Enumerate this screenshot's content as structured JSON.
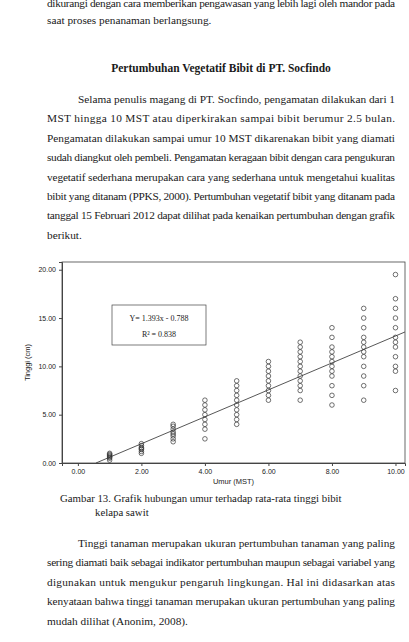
{
  "document": {
    "header_lines": [
      "dikurangi dengan cara memberikan pengawasan yang lebih lagi oleh mandor pada",
      "saat proses penanaman berlangsung."
    ],
    "heading": "Pertumbuhan Vegetatif Bibit di PT. Socfindo",
    "paragraph1": [
      "Selama penulis magang di PT. Socfindo, pengamatan dilakukan dari 1",
      "MST hingga 10 MST atau diperkirakan sampai bibit berumur 2.5 bulan.",
      "Pengamatan dilakukan sampai umur 10 MST dikarenakan bibit yang diamati",
      "sudah diangkut oleh pembeli. Pengamatan keragaan bibit dengan cara pengukuran",
      "vegetatif sederhana merupakan cara yang sederhana untuk mengetahui kualitas",
      "bibit yang ditanam (PPKS, 2000). Pertumbuhan vegetatif bibit yang ditanam pada",
      "tanggal 15 Februari 2012 dapat dilihat pada kenaikan pertumbuhan dengan grafik",
      "berikut."
    ],
    "caption": [
      "Gambar 13. Grafik hubungan umur terhadap rata-rata tinggi bibit",
      "kelapa sawit"
    ],
    "paragraph2": [
      "Tinggi tanaman merupakan ukuran pertumbuhan tanaman yang paling",
      "sering diamati baik sebagai indikator pertumbuhan maupun sebagai variabel yang",
      "digunakan untuk mengukur pengaruh lingkungan. Hal ini didasarkan atas",
      "kenyataan bahwa tinggi tanaman merupakan ukuran pertumbuhan yang paling",
      "mudah dilihat (Anonim, 2008)."
    ]
  },
  "chart_data": {
    "type": "scatter",
    "xlabel": "Umur (MST)",
    "ylabel": "Tinggi (cm)",
    "marker": "circle-open",
    "color": "#333333",
    "x": [
      1,
      1,
      1,
      1,
      1,
      1,
      1,
      2,
      2,
      2,
      2,
      2,
      2,
      2,
      3,
      3,
      3,
      3,
      3,
      3,
      3,
      3,
      4,
      4,
      4,
      4,
      4,
      4,
      4,
      4,
      5,
      5,
      5,
      5,
      5,
      5,
      5,
      5,
      5,
      5,
      6,
      6,
      6,
      6,
      6,
      6,
      6,
      6,
      6,
      7,
      7,
      7,
      7,
      7,
      7,
      7,
      7,
      7,
      7,
      7,
      7,
      8,
      8,
      8,
      8,
      8,
      8,
      8,
      8,
      8,
      8,
      8,
      8,
      9,
      9,
      9,
      9,
      9,
      9,
      9,
      9,
      9,
      9,
      9,
      9,
      10,
      10,
      10,
      10,
      10,
      10,
      10,
      10,
      10,
      10,
      10,
      10
    ],
    "values": [
      0.3,
      0.5,
      0.6,
      0.7,
      0.8,
      0.9,
      1.0,
      1.0,
      1.2,
      1.4,
      1.5,
      1.6,
      1.8,
      2.0,
      2.2,
      2.5,
      2.8,
      3.0,
      3.2,
      3.5,
      3.8,
      4.0,
      2.5,
      3.5,
      4.0,
      4.5,
      5.0,
      5.5,
      6.0,
      6.5,
      4.0,
      4.5,
      5.0,
      5.5,
      6.0,
      6.5,
      7.0,
      7.5,
      8.0,
      8.5,
      6.5,
      7.0,
      7.5,
      8.0,
      8.5,
      9.0,
      9.5,
      10.0,
      10.5,
      6.5,
      7.5,
      8.0,
      8.5,
      9.0,
      9.5,
      10.0,
      10.5,
      11.0,
      11.5,
      12.0,
      12.5,
      6.0,
      7.0,
      8.0,
      9.0,
      9.5,
      10.0,
      10.5,
      11.0,
      11.5,
      12.0,
      13.0,
      14.0,
      6.5,
      8.0,
      9.0,
      10.0,
      11.0,
      11.5,
      12.0,
      12.5,
      13.0,
      14.0,
      15.0,
      16.0,
      7.5,
      9.5,
      10.0,
      11.0,
      12.0,
      12.5,
      13.0,
      14.0,
      15.0,
      16.0,
      17.0,
      19.5
    ],
    "fit_line": {
      "x": [
        0.57,
        10.3
      ],
      "y": [
        0,
        13.56
      ]
    },
    "annotations": [
      "Y= 1.393x - 0.788",
      "R² = 0.838"
    ],
    "xlim": [
      -0.5,
      10.3
    ],
    "ylim": [
      0,
      20.8
    ],
    "xticks": [
      {
        "value": 0,
        "label": "0.00"
      },
      {
        "value": 2,
        "label": "2.00"
      },
      {
        "value": 4,
        "label": "4.00"
      },
      {
        "value": 6,
        "label": "6.00"
      },
      {
        "value": 8,
        "label": "8.00"
      },
      {
        "value": 10,
        "label": "10.00"
      }
    ],
    "yticks": [
      {
        "value": 0,
        "label": "0.00"
      },
      {
        "value": 5,
        "label": "5.00"
      },
      {
        "value": 10,
        "label": "10.00"
      },
      {
        "value": 15,
        "label": "15.00"
      },
      {
        "value": 20,
        "label": "20.00"
      }
    ]
  }
}
